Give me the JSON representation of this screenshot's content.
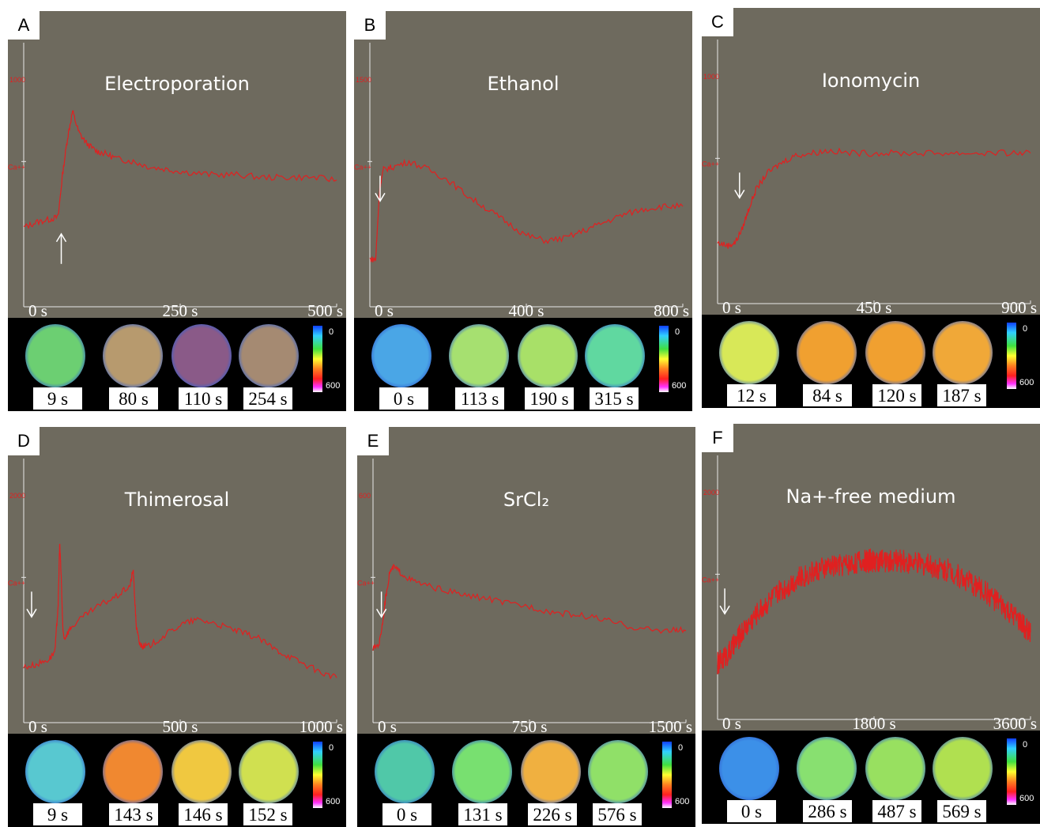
{
  "colors": {
    "plot_bg": "#6e6a5e",
    "trace": "#e02020",
    "axis": "#e8e8e8",
    "tick_text": "#e02020",
    "strip_bg": "#000000"
  },
  "chart_data": [
    {
      "type": "line",
      "panel": "A",
      "title": "Electroporation",
      "x": [
        0,
        20,
        40,
        55,
        62,
        70,
        78,
        88,
        100,
        115,
        130,
        150,
        175,
        200,
        230,
        260,
        300,
        340,
        380,
        420,
        460,
        500
      ],
      "y": [
        0.3,
        0.32,
        0.33,
        0.34,
        0.5,
        0.64,
        0.74,
        0.66,
        0.62,
        0.59,
        0.58,
        0.56,
        0.55,
        0.53,
        0.52,
        0.51,
        0.5,
        0.5,
        0.49,
        0.49,
        0.49,
        0.48
      ],
      "xlim": [
        0,
        500
      ],
      "ylim": [
        0,
        1
      ],
      "xticks": [
        "0 s",
        "250 s",
        "500 s"
      ],
      "ylabels": [
        "1000",
        "Ca++"
      ],
      "arrow": {
        "x": 60,
        "direction": "up"
      },
      "images": {
        "labels": [
          "9 s",
          "80 s",
          "110 s",
          "254 s"
        ],
        "colorbar_min": "0",
        "colorbar_max": "600"
      }
    },
    {
      "type": "line",
      "panel": "B",
      "title": "Ethanol",
      "x": [
        0,
        15,
        25,
        35,
        60,
        100,
        150,
        200,
        250,
        300,
        350,
        400,
        450,
        500,
        550,
        600,
        650,
        700,
        750,
        800
      ],
      "y": [
        0.18,
        0.18,
        0.45,
        0.52,
        0.53,
        0.55,
        0.52,
        0.48,
        0.42,
        0.37,
        0.32,
        0.27,
        0.25,
        0.26,
        0.29,
        0.32,
        0.35,
        0.37,
        0.38,
        0.38
      ],
      "xlim": [
        0,
        800
      ],
      "ylim": [
        0,
        1
      ],
      "xticks": [
        "0 s",
        "400 s",
        "800 s"
      ],
      "ylabels": [
        "1500",
        "Ca++"
      ],
      "arrow": {
        "x": 10,
        "direction": "down"
      },
      "images": {
        "labels": [
          "0 s",
          "113 s",
          "190 s",
          "315 s"
        ],
        "colorbar_min": "0",
        "colorbar_max": "600"
      }
    },
    {
      "type": "line",
      "panel": "C",
      "title": "Ionomycin",
      "x": [
        0,
        30,
        50,
        70,
        90,
        110,
        140,
        180,
        220,
        270,
        320,
        380,
        450,
        520,
        600,
        680,
        760,
        840,
        900
      ],
      "y": [
        0.23,
        0.22,
        0.23,
        0.28,
        0.36,
        0.43,
        0.49,
        0.53,
        0.56,
        0.57,
        0.58,
        0.57,
        0.57,
        0.57,
        0.57,
        0.57,
        0.57,
        0.57,
        0.57
      ],
      "xlim": [
        0,
        900
      ],
      "ylim": [
        0,
        1
      ],
      "xticks": [
        "0 s",
        "450 s",
        "900 s"
      ],
      "ylabels": [
        "1000",
        "Ca++"
      ],
      "arrow": {
        "x": 45,
        "direction": "down"
      },
      "images": {
        "labels": [
          "12 s",
          "84 s",
          "120 s",
          "187 s"
        ],
        "colorbar_min": "0",
        "colorbar_max": "600"
      }
    },
    {
      "type": "line",
      "panel": "D",
      "title": "Thimerosal",
      "x": [
        0,
        40,
        80,
        100,
        110,
        115,
        120,
        125,
        130,
        150,
        200,
        250,
        300,
        340,
        350,
        355,
        360,
        370,
        380,
        400,
        450,
        500,
        550,
        600,
        650,
        700,
        750,
        800,
        850,
        900,
        950,
        1000
      ],
      "y": [
        0.21,
        0.22,
        0.24,
        0.27,
        0.45,
        0.68,
        0.55,
        0.35,
        0.32,
        0.36,
        0.41,
        0.45,
        0.48,
        0.52,
        0.58,
        0.46,
        0.36,
        0.3,
        0.29,
        0.29,
        0.33,
        0.37,
        0.39,
        0.38,
        0.36,
        0.34,
        0.32,
        0.28,
        0.25,
        0.22,
        0.19,
        0.17
      ],
      "xlim": [
        0,
        1000
      ],
      "ylim": [
        0,
        1
      ],
      "xticks": [
        "0 s",
        "500 s",
        "1000 s"
      ],
      "ylabels": [
        "2000",
        "Ca++"
      ],
      "arrow": {
        "x": 5,
        "direction": "down"
      },
      "images": {
        "labels": [
          "9 s",
          "143 s",
          "146 s",
          "152 s"
        ],
        "colorbar_min": "0",
        "colorbar_max": "600"
      }
    },
    {
      "type": "line",
      "panel": "E",
      "title": "SrCl₂",
      "x": [
        0,
        30,
        50,
        60,
        80,
        100,
        130,
        180,
        250,
        350,
        450,
        550,
        650,
        750,
        850,
        950,
        1050,
        1150,
        1250,
        1350,
        1450,
        1500
      ],
      "y": [
        0.28,
        0.3,
        0.4,
        0.47,
        0.57,
        0.59,
        0.57,
        0.54,
        0.52,
        0.5,
        0.48,
        0.47,
        0.45,
        0.44,
        0.42,
        0.41,
        0.4,
        0.38,
        0.36,
        0.35,
        0.35,
        0.35
      ],
      "xlim": [
        0,
        1500
      ],
      "ylim": [
        0,
        1
      ],
      "xticks": [
        "0 s",
        "750 s",
        "1500 s"
      ],
      "ylabels": [
        "600",
        "Ca++"
      ],
      "arrow": {
        "x": 10,
        "direction": "down"
      },
      "images": {
        "labels": [
          "0 s",
          "131 s",
          "226 s",
          "576 s"
        ],
        "colorbar_min": "0",
        "colorbar_max": "600"
      }
    },
    {
      "type": "line",
      "panel": "F",
      "title": "Na+-free medium",
      "x": [
        0,
        150,
        300,
        500,
        700,
        900,
        1100,
        1300,
        1500,
        1700,
        1800,
        1900,
        2100,
        2300,
        2500,
        2700,
        2900,
        3100,
        3300,
        3500,
        3600
      ],
      "y": [
        0.21,
        0.26,
        0.34,
        0.42,
        0.48,
        0.53,
        0.56,
        0.58,
        0.59,
        0.6,
        0.6,
        0.6,
        0.6,
        0.59,
        0.58,
        0.56,
        0.52,
        0.48,
        0.42,
        0.36,
        0.33
      ],
      "xlim": [
        0,
        3600
      ],
      "ylim": [
        0,
        1
      ],
      "xticks": [
        "0 s",
        "1800 s",
        "3600 s"
      ],
      "ylabels": [
        "2000",
        "Ca++"
      ],
      "arrow": {
        "x": 10,
        "direction": "down"
      },
      "images": {
        "labels": [
          "0 s",
          "286 s",
          "487 s",
          "569 s"
        ],
        "colorbar_min": "0",
        "colorbar_max": "600"
      }
    }
  ]
}
